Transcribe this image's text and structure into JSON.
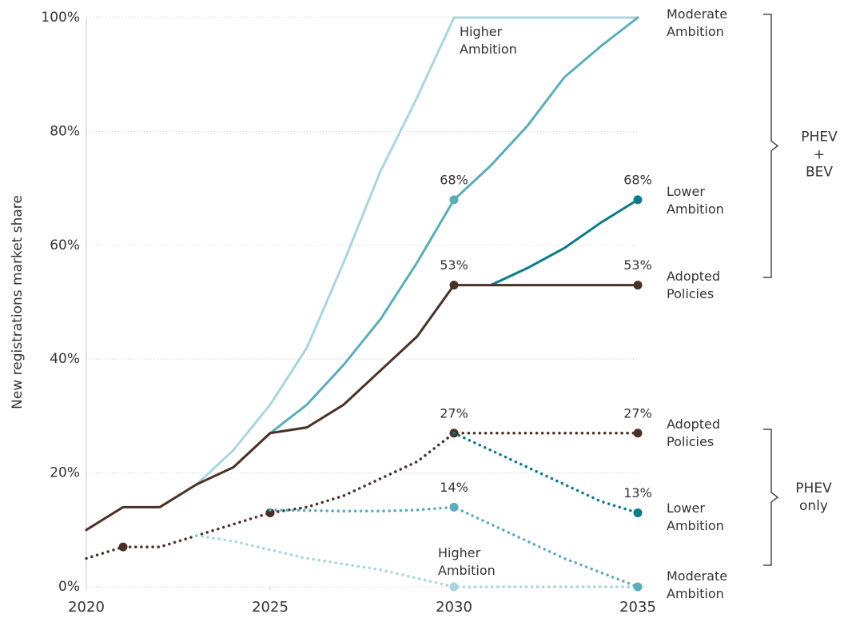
{
  "chart_data": {
    "type": "line",
    "ylabel": "New registrations market share",
    "x": [
      2020,
      2021,
      2022,
      2023,
      2024,
      2025,
      2026,
      2027,
      2028,
      2029,
      2030,
      2031,
      2032,
      2033,
      2034,
      2035
    ],
    "xlim": [
      2020,
      2035
    ],
    "xticks": [
      2020,
      2025,
      2030,
      2035
    ],
    "ylim": [
      0,
      100
    ],
    "yticks": [
      {
        "value": 0,
        "label": "0%"
      },
      {
        "value": 20,
        "label": "20%"
      },
      {
        "value": 40,
        "label": "40%"
      },
      {
        "value": 60,
        "label": "60%"
      },
      {
        "value": 80,
        "label": "80%"
      },
      {
        "value": 100,
        "label": "100%"
      }
    ],
    "grid": true,
    "series": [
      {
        "name": "Higher Ambition",
        "group": 0,
        "style": "solid",
        "color": "#a9d6dd",
        "label_color": "#1b8c98",
        "values": [
          null,
          null,
          null,
          18,
          24,
          32,
          42,
          57,
          73,
          86,
          100,
          100,
          100,
          100,
          100,
          100
        ]
      },
      {
        "name": "Moderate Ambition",
        "group": 0,
        "style": "solid",
        "color": "#5badb9",
        "label_color": "#1b8c98",
        "values": [
          null,
          null,
          null,
          null,
          null,
          27,
          32,
          39,
          47,
          57,
          68,
          74,
          81,
          89.5,
          95,
          100
        ],
        "value_labels": [
          null,
          null,
          null,
          null,
          null,
          null,
          null,
          null,
          null,
          null,
          "68%",
          null,
          null,
          null,
          null,
          null
        ],
        "markers": [
          10
        ]
      },
      {
        "name": "Lower Ambition",
        "group": 0,
        "style": "solid",
        "color": "#0b7a89",
        "label_color": "#1b8c98",
        "values": [
          null,
          null,
          null,
          null,
          null,
          null,
          null,
          null,
          null,
          null,
          null,
          53,
          56,
          59.5,
          64,
          68
        ],
        "value_labels": [
          null,
          null,
          null,
          null,
          null,
          null,
          null,
          null,
          null,
          null,
          null,
          null,
          null,
          null,
          null,
          "68%"
        ],
        "markers": [
          15
        ]
      },
      {
        "name": "Adopted Policies",
        "group": 0,
        "style": "solid",
        "color": "#4a3128",
        "label_color": "#4a3128",
        "values": [
          10,
          14,
          14,
          18,
          21,
          27,
          28,
          32,
          38,
          44,
          53,
          53,
          53,
          53,
          53,
          53
        ],
        "value_labels": [
          null,
          null,
          null,
          null,
          null,
          null,
          null,
          null,
          null,
          null,
          "53%",
          null,
          null,
          null,
          null,
          "53%"
        ],
        "markers": [
          10,
          15
        ]
      },
      {
        "name": "Adopted Policies",
        "group": 1,
        "style": "dotted",
        "color": "#4a3128",
        "label_color": "#4a3128",
        "values": [
          5,
          7,
          7,
          9,
          11,
          13,
          14,
          16,
          19,
          22,
          27,
          27,
          27,
          27,
          27,
          27
        ],
        "value_labels": [
          null,
          null,
          null,
          null,
          null,
          null,
          null,
          null,
          null,
          null,
          "27%",
          null,
          null,
          null,
          null,
          "27%"
        ],
        "markers": [
          1,
          5,
          10,
          15
        ]
      },
      {
        "name": "Lower Ambition",
        "group": 1,
        "style": "dotted",
        "color": "#0b7a89",
        "label_color": "#1b8c98",
        "values": [
          null,
          null,
          null,
          null,
          null,
          null,
          null,
          null,
          null,
          null,
          27,
          24,
          21,
          18,
          15,
          13
        ],
        "value_labels": [
          null,
          null,
          null,
          null,
          null,
          null,
          null,
          null,
          null,
          null,
          null,
          null,
          null,
          null,
          null,
          "13%"
        ],
        "markers": [
          15
        ]
      },
      {
        "name": "Higher Ambition",
        "group": 1,
        "style": "dotted",
        "color": "#a9d6dd",
        "label_color": "#1b8c98",
        "values": [
          null,
          null,
          null,
          9,
          8,
          6.5,
          5,
          4,
          3,
          1.5,
          0,
          0,
          0,
          0,
          0,
          0
        ],
        "markers": [
          10
        ]
      },
      {
        "name": "Moderate Ambition",
        "group": 1,
        "style": "dotted",
        "color": "#5badb9",
        "label_color": "#1b8c98",
        "values": [
          null,
          null,
          null,
          null,
          null,
          13.5,
          13.4,
          13.3,
          13.3,
          13.5,
          14,
          11,
          8,
          5,
          2.5,
          0
        ],
        "value_labels": [
          null,
          null,
          null,
          null,
          null,
          null,
          null,
          null,
          null,
          null,
          "14%",
          null,
          null,
          null,
          null,
          null
        ],
        "markers": [
          10,
          15
        ]
      }
    ],
    "groups": [
      {
        "label": "PHEV + BEV"
      },
      {
        "label": "PHEV only"
      }
    ]
  }
}
